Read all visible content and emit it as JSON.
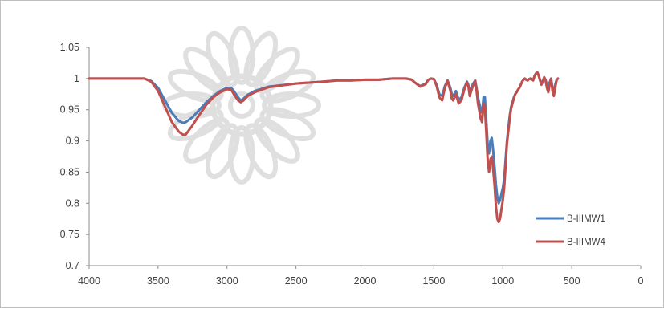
{
  "chart_data": {
    "type": "line",
    "title": "",
    "xlabel": "",
    "ylabel": "",
    "x_reversed": true,
    "xlim": [
      4000,
      0
    ],
    "ylim": [
      0.7,
      1.05
    ],
    "x_ticks": [
      4000,
      3500,
      3000,
      2500,
      2000,
      1500,
      1000,
      500,
      0
    ],
    "y_ticks": [
      0.7,
      0.75,
      0.8,
      0.85,
      0.9,
      0.95,
      1,
      1.05
    ],
    "x_tick_labels": [
      "4000",
      "3500",
      "3000",
      "2500",
      "2000",
      "1500",
      "1000",
      "500",
      "0"
    ],
    "y_tick_labels": [
      "0.7",
      "0.75",
      "0.8",
      "0.85",
      "0.9",
      "0.95",
      "1",
      "1.05"
    ],
    "grid": false,
    "legend_position": "bottom-right",
    "series": [
      {
        "name": "B-IIIMW1",
        "color": "#4a7ebb",
        "x": [
          4000,
          3800,
          3700,
          3600,
          3550,
          3500,
          3450,
          3400,
          3350,
          3320,
          3300,
          3250,
          3200,
          3150,
          3100,
          3050,
          3000,
          2970,
          2950,
          2920,
          2900,
          2880,
          2850,
          2800,
          2700,
          2500,
          2300,
          2200,
          2100,
          2000,
          1900,
          1800,
          1750,
          1700,
          1660,
          1640,
          1600,
          1560,
          1540,
          1520,
          1500,
          1480,
          1460,
          1440,
          1420,
          1400,
          1380,
          1370,
          1360,
          1340,
          1320,
          1300,
          1280,
          1260,
          1250,
          1240,
          1220,
          1200,
          1190,
          1180,
          1160,
          1150,
          1140,
          1130,
          1120,
          1110,
          1100,
          1090,
          1080,
          1070,
          1060,
          1050,
          1040,
          1030,
          1020,
          1010,
          1000,
          990,
          980,
          970,
          960,
          950,
          940,
          930,
          920,
          910,
          900,
          890,
          880,
          870,
          860,
          850,
          840,
          830,
          820,
          810,
          800,
          790,
          780,
          770,
          760,
          750,
          740,
          730,
          720,
          710,
          700,
          690,
          680,
          670,
          660,
          650,
          640,
          630,
          620,
          610,
          600
        ],
        "values": [
          1.0,
          1.0,
          1.0,
          1.0,
          0.996,
          0.985,
          0.965,
          0.945,
          0.932,
          0.929,
          0.93,
          0.938,
          0.95,
          0.962,
          0.972,
          0.98,
          0.985,
          0.985,
          0.98,
          0.97,
          0.965,
          0.968,
          0.974,
          0.98,
          0.987,
          0.992,
          0.995,
          0.997,
          0.997,
          0.998,
          0.998,
          1.0,
          1.0,
          1.0,
          0.998,
          0.994,
          0.988,
          0.992,
          0.998,
          1.0,
          0.999,
          0.99,
          0.975,
          0.972,
          0.988,
          0.997,
          0.985,
          0.975,
          0.972,
          0.98,
          0.966,
          0.97,
          0.985,
          0.995,
          0.99,
          0.978,
          0.99,
          0.997,
          0.985,
          0.97,
          0.95,
          0.945,
          0.97,
          0.97,
          0.935,
          0.895,
          0.88,
          0.9,
          0.905,
          0.885,
          0.86,
          0.83,
          0.81,
          0.8,
          0.805,
          0.815,
          0.825,
          0.84,
          0.87,
          0.9,
          0.92,
          0.94,
          0.955,
          0.962,
          0.97,
          0.975,
          0.978,
          0.982,
          0.985,
          0.99,
          0.995,
          0.998,
          1.0,
          0.998,
          0.997,
          0.999,
          1.0,
          0.998,
          0.997,
          1.004,
          1.008,
          1.01,
          1.005,
          0.998,
          0.992,
          0.996,
          1.002,
          0.998,
          0.99,
          0.985,
          0.994,
          1.0,
          0.985,
          0.98,
          0.99,
          0.998,
          1.0
        ]
      },
      {
        "name": "B-IIIMW4",
        "color": "#c0504d",
        "x": [
          4000,
          3800,
          3700,
          3600,
          3550,
          3500,
          3450,
          3400,
          3350,
          3320,
          3300,
          3250,
          3200,
          3150,
          3100,
          3050,
          3000,
          2970,
          2950,
          2920,
          2900,
          2880,
          2850,
          2800,
          2700,
          2500,
          2300,
          2200,
          2100,
          2000,
          1900,
          1800,
          1750,
          1700,
          1660,
          1640,
          1600,
          1560,
          1540,
          1520,
          1500,
          1480,
          1460,
          1440,
          1420,
          1400,
          1380,
          1370,
          1360,
          1340,
          1320,
          1300,
          1280,
          1260,
          1250,
          1240,
          1220,
          1200,
          1190,
          1180,
          1160,
          1150,
          1140,
          1130,
          1120,
          1110,
          1100,
          1090,
          1080,
          1070,
          1060,
          1050,
          1040,
          1030,
          1020,
          1010,
          1000,
          990,
          980,
          970,
          960,
          950,
          940,
          930,
          920,
          910,
          900,
          890,
          880,
          870,
          860,
          850,
          840,
          830,
          820,
          810,
          800,
          790,
          780,
          770,
          760,
          750,
          740,
          730,
          720,
          710,
          700,
          690,
          680,
          670,
          660,
          650,
          640,
          630,
          620,
          610,
          600
        ],
        "values": [
          1.0,
          1.0,
          1.0,
          1.0,
          0.995,
          0.98,
          0.955,
          0.93,
          0.915,
          0.91,
          0.91,
          0.925,
          0.942,
          0.958,
          0.97,
          0.978,
          0.983,
          0.982,
          0.975,
          0.965,
          0.962,
          0.965,
          0.972,
          0.978,
          0.986,
          0.992,
          0.995,
          0.997,
          0.997,
          0.998,
          0.998,
          1.0,
          1.0,
          1.0,
          0.998,
          0.994,
          0.987,
          0.991,
          0.998,
          1.0,
          0.999,
          0.988,
          0.97,
          0.965,
          0.985,
          0.996,
          0.98,
          0.968,
          0.965,
          0.975,
          0.96,
          0.965,
          0.982,
          0.994,
          0.988,
          0.972,
          0.986,
          0.996,
          0.98,
          0.96,
          0.935,
          0.93,
          0.96,
          0.955,
          0.915,
          0.87,
          0.85,
          0.87,
          0.875,
          0.855,
          0.83,
          0.795,
          0.775,
          0.77,
          0.775,
          0.79,
          0.805,
          0.825,
          0.86,
          0.895,
          0.915,
          0.935,
          0.952,
          0.96,
          0.968,
          0.975,
          0.978,
          0.982,
          0.985,
          0.99,
          0.995,
          0.998,
          1.0,
          0.998,
          0.997,
          0.999,
          1.0,
          0.998,
          0.997,
          1.004,
          1.008,
          1.01,
          1.005,
          0.997,
          0.99,
          0.995,
          1.002,
          0.997,
          0.985,
          0.978,
          0.99,
          1.0,
          0.98,
          0.972,
          0.985,
          0.997,
          1.0
        ]
      }
    ]
  }
}
